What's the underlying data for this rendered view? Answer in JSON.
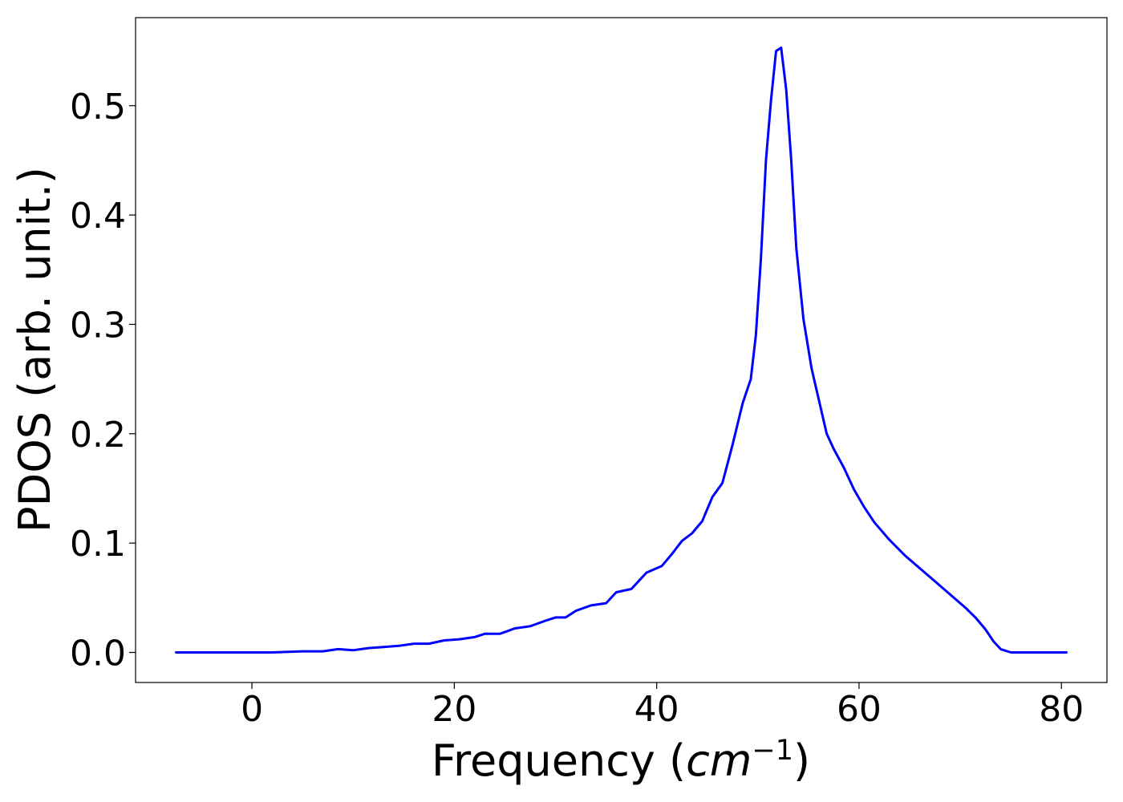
{
  "chart_data": {
    "type": "line",
    "xlabel": "Frequency (cm⁻¹)",
    "xlabel_parts": {
      "prefix": "Frequency (",
      "unit": "cm",
      "exponent": "−1",
      "suffix": ")"
    },
    "ylabel": "PDOS (arb. unit.)",
    "xlim": [
      -11.5,
      84.5
    ],
    "ylim": [
      -0.0275,
      0.5805
    ],
    "xticks": [
      0,
      20,
      40,
      60,
      80
    ],
    "xtick_labels": [
      "0",
      "20",
      "40",
      "60",
      "80"
    ],
    "yticks": [
      0.0,
      0.1,
      0.2,
      0.3,
      0.4,
      0.5
    ],
    "ytick_labels": [
      "0.0",
      "0.1",
      "0.2",
      "0.3",
      "0.4",
      "0.5"
    ],
    "grid": false,
    "legend": "none",
    "line_color": "#0000ff",
    "series": [
      {
        "x": [
          -7.5,
          2,
          5,
          7,
          8.5,
          10,
          11.5,
          13,
          14.5,
          16,
          17.5,
          19,
          20.5,
          22,
          23,
          24.5,
          26,
          27.5,
          29,
          30,
          31,
          32,
          33.5,
          35,
          36,
          37.5,
          39,
          40.5,
          41.5,
          42.5,
          43.5,
          44.5,
          45.5,
          46.5,
          47.5,
          48.5,
          49.3,
          49.8,
          50.3,
          50.8,
          51.3,
          51.8,
          52.3,
          52.8,
          53.3,
          53.8,
          54.5,
          55.3,
          56,
          56.8,
          57.5,
          58.5,
          59.5,
          60.5,
          61.5,
          63,
          64.5,
          66,
          67.5,
          69,
          70.5,
          71.5,
          72.5,
          73.3,
          74,
          75,
          80.5
        ],
        "y": [
          0.0,
          0.0,
          0.001,
          0.001,
          0.003,
          0.002,
          0.004,
          0.005,
          0.006,
          0.008,
          0.008,
          0.011,
          0.012,
          0.014,
          0.017,
          0.017,
          0.022,
          0.024,
          0.029,
          0.032,
          0.032,
          0.038,
          0.043,
          0.045,
          0.055,
          0.058,
          0.073,
          0.079,
          0.09,
          0.102,
          0.109,
          0.12,
          0.142,
          0.155,
          0.19,
          0.228,
          0.25,
          0.29,
          0.36,
          0.45,
          0.505,
          0.55,
          0.553,
          0.515,
          0.45,
          0.37,
          0.305,
          0.26,
          0.232,
          0.2,
          0.186,
          0.169,
          0.149,
          0.133,
          0.119,
          0.103,
          0.089,
          0.077,
          0.065,
          0.053,
          0.041,
          0.032,
          0.021,
          0.01,
          0.003,
          0.0,
          0.0
        ]
      }
    ]
  }
}
